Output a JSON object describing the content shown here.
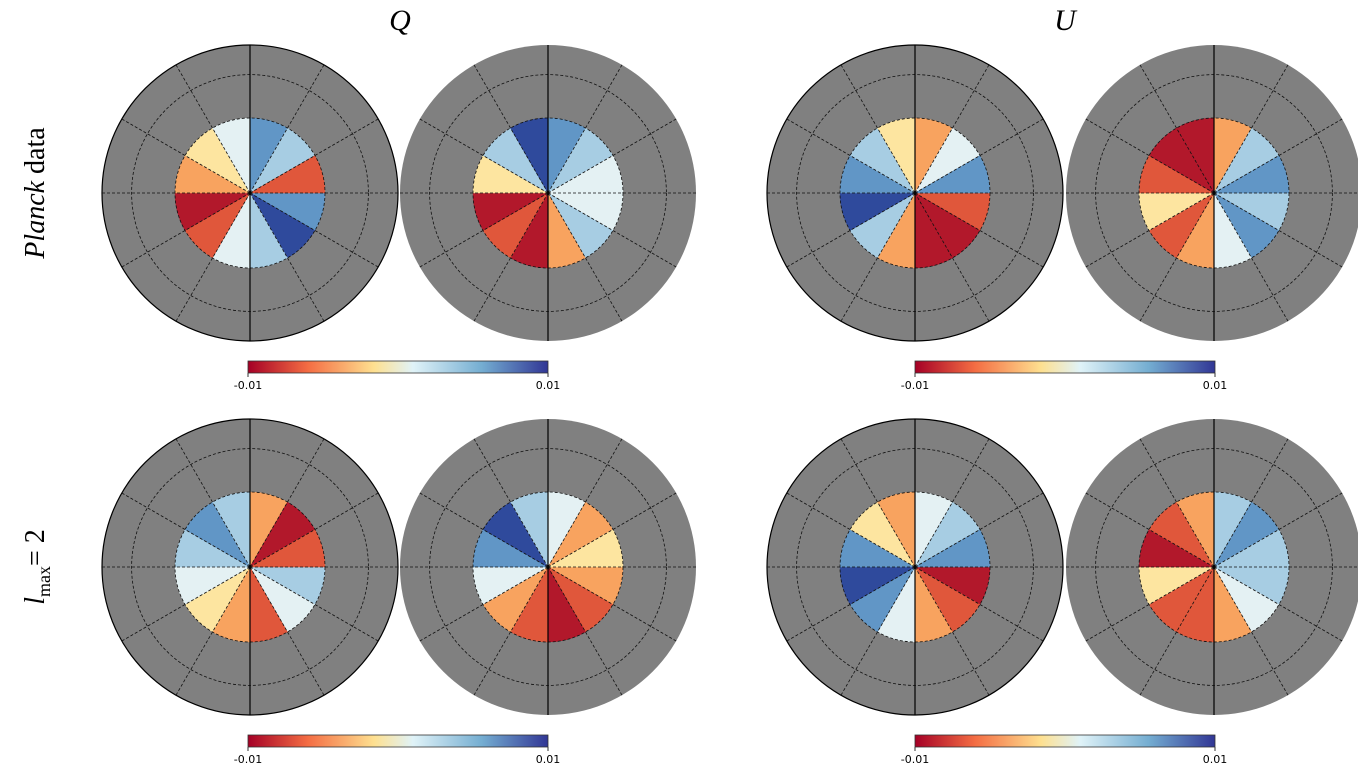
{
  "columns": [
    "Q",
    "U"
  ],
  "rows": [
    {
      "italic": "Planck",
      "text": "data"
    },
    {
      "symbol": "l",
      "subscript": "max",
      "text": "= 2"
    }
  ],
  "colorbars": [
    {
      "min": "-0.01",
      "max": "0.01"
    },
    {
      "min": "-0.01",
      "max": "0.01"
    },
    {
      "min": "-0.01",
      "max": "0.01"
    },
    {
      "min": "-0.01",
      "max": "0.01"
    }
  ]
}
